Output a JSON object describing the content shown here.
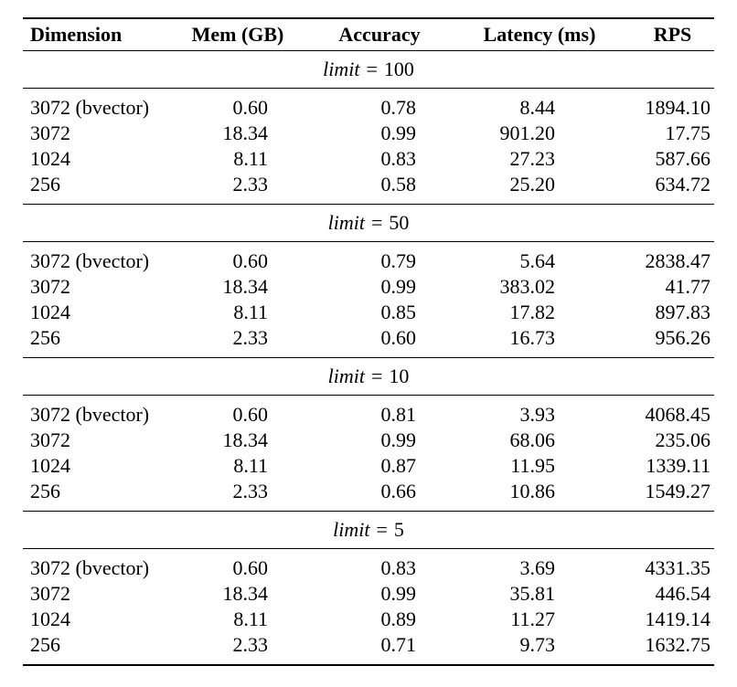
{
  "page": {
    "background": "#ffffff",
    "text_color": "#000000"
  },
  "chart_data": {
    "type": "table",
    "columns": [
      "Dimension",
      "Mem (GB)",
      "Accuracy",
      "Latency (ms)",
      "RPS"
    ],
    "sections": [
      {
        "heading": {
          "word": "limit",
          "eq": "=",
          "value": "100"
        },
        "rows": [
          [
            "3072 (bvector)",
            "0.60",
            "0.78",
            "8.44",
            "1894.10"
          ],
          [
            "3072",
            "18.34",
            "0.99",
            "901.20",
            "17.75"
          ],
          [
            "1024",
            "8.11",
            "0.83",
            "27.23",
            "587.66"
          ],
          [
            "256",
            "2.33",
            "0.58",
            "25.20",
            "634.72"
          ]
        ]
      },
      {
        "heading": {
          "word": "limit",
          "eq": "=",
          "value": "50"
        },
        "rows": [
          [
            "3072 (bvector)",
            "0.60",
            "0.79",
            "5.64",
            "2838.47"
          ],
          [
            "3072",
            "18.34",
            "0.99",
            "383.02",
            "41.77"
          ],
          [
            "1024",
            "8.11",
            "0.85",
            "17.82",
            "897.83"
          ],
          [
            "256",
            "2.33",
            "0.60",
            "16.73",
            "956.26"
          ]
        ]
      },
      {
        "heading": {
          "word": "limit",
          "eq": "=",
          "value": "10"
        },
        "rows": [
          [
            "3072 (bvector)",
            "0.60",
            "0.81",
            "3.93",
            "4068.45"
          ],
          [
            "3072",
            "18.34",
            "0.99",
            "68.06",
            "235.06"
          ],
          [
            "1024",
            "8.11",
            "0.87",
            "11.95",
            "1339.11"
          ],
          [
            "256",
            "2.33",
            "0.66",
            "10.86",
            "1549.27"
          ]
        ]
      },
      {
        "heading": {
          "word": "limit",
          "eq": "=",
          "value": "5"
        },
        "rows": [
          [
            "3072 (bvector)",
            "0.60",
            "0.83",
            "3.69",
            "4331.35"
          ],
          [
            "3072",
            "18.34",
            "0.99",
            "35.81",
            "446.54"
          ],
          [
            "1024",
            "8.11",
            "0.89",
            "11.27",
            "1419.14"
          ],
          [
            "256",
            "2.33",
            "0.71",
            "9.73",
            "1632.75"
          ]
        ]
      }
    ]
  }
}
